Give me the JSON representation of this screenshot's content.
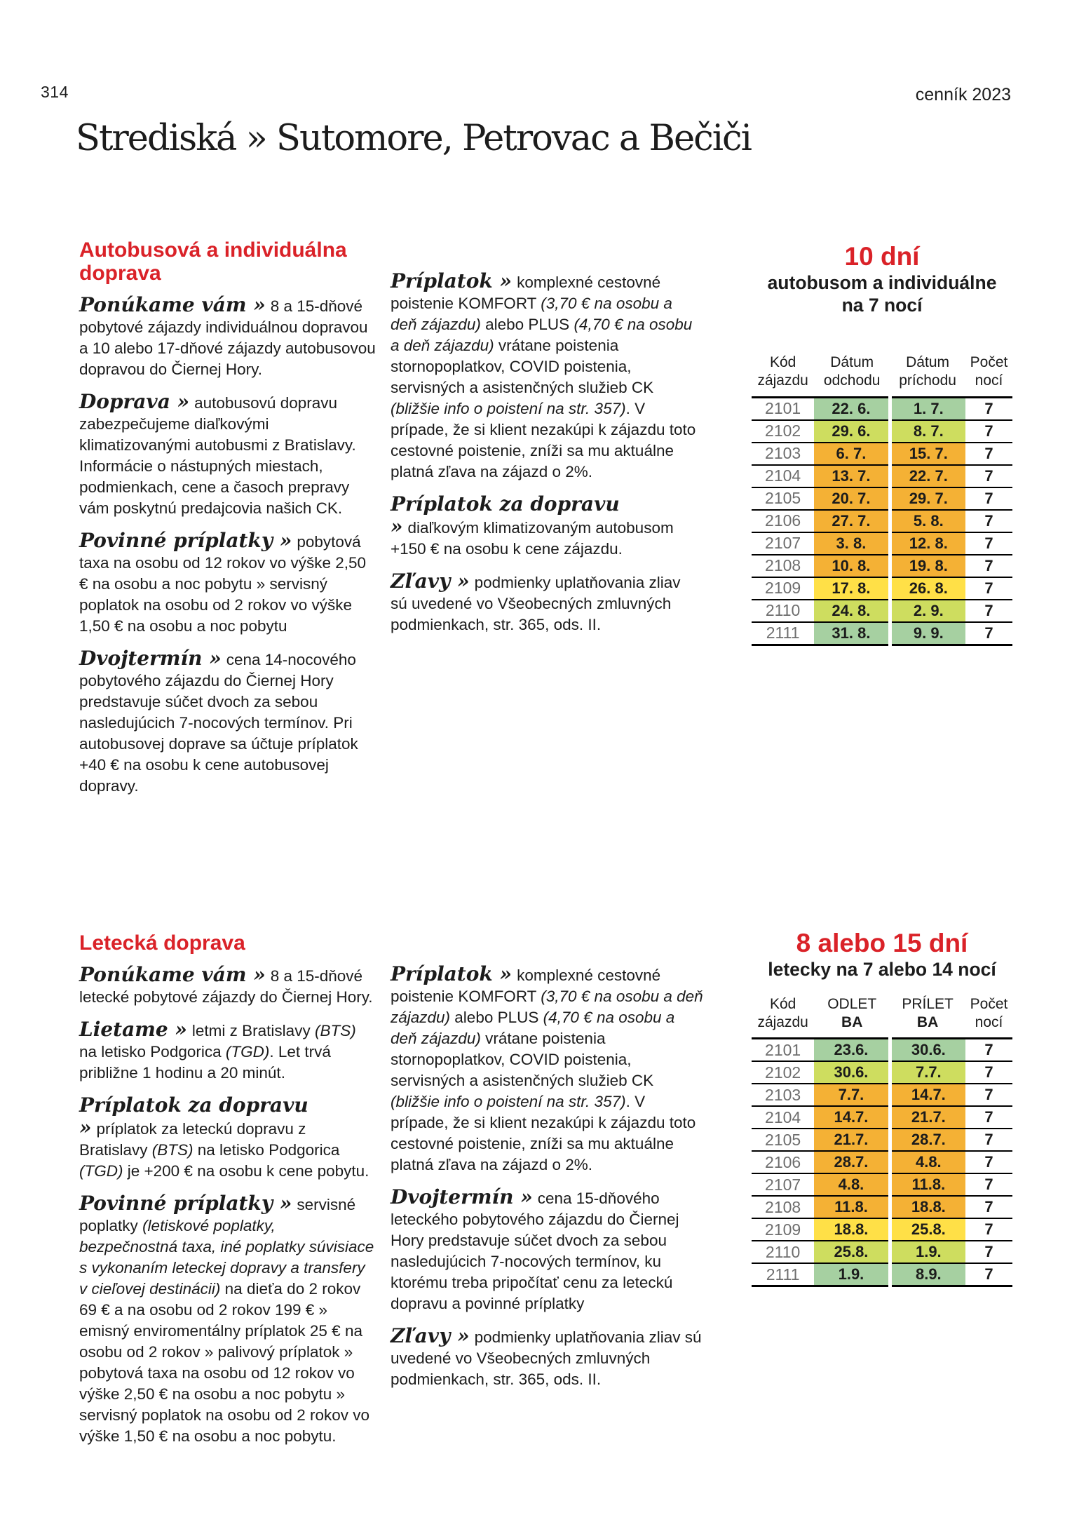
{
  "page": {
    "number": "314",
    "edition": "cenník 2023",
    "title": "Strediská » Sutomore, Petrovac a Bečiči"
  },
  "colors": {
    "accent_red": "#da2228",
    "row_green": "#a6d0a1",
    "row_lime": "#cedd5f",
    "row_orange": "#f4b135",
    "row_yellow": "#ffe047"
  },
  "section_bus": {
    "heading": "Autobusová a individuálna doprava",
    "col1": [
      {
        "lead": "Ponúkame vám »",
        "runs": [
          {
            "t": "8 a 15-dňové pobytové zájazdy individuálnou dopravou a 10 alebo 17-dňové zájazdy autobusovou dopravou do Čiernej Hory."
          }
        ]
      },
      {
        "lead": "Doprava »",
        "runs": [
          {
            "t": "autobusovú dopravu zabezpečujeme diaľkovými klimatizovanými autobusmi z Bratislavy. Informácie o nástupných miestach, podmienkach, cene a časoch prepravy vám poskytnú predajcovia našich CK."
          }
        ]
      },
      {
        "lead": "Povinné príplatky »",
        "runs": [
          {
            "t": "pobytová taxa na osobu od 12 rokov vo výške 2,50 € na osobu a noc pobytu » servisný poplatok na osobu od 2 rokov vo výške 1,50 € na osobu a noc pobytu"
          }
        ]
      },
      {
        "lead": "Dvojtermín »",
        "runs": [
          {
            "t": "cena 14-nocového pobytového zájazdu do Čiernej Hory predstavuje súčet dvoch za sebou nasledujúcich 7-nocových termínov. Pri autobusovej doprave sa účtuje príplatok +40 € na osobu k cene autobusovej dopravy."
          }
        ]
      }
    ],
    "col2": [
      {
        "lead": "Príplatok »",
        "runs": [
          {
            "t": "komplexné cestovné poistenie KOMFORT "
          },
          {
            "t": "(3,70 € na osobu a deň zájazdu)",
            "i": true
          },
          {
            "t": " alebo PLUS "
          },
          {
            "t": "(4,70 € na osobu a deň zájazdu)",
            "i": true
          },
          {
            "t": " vrátane poistenia stornopoplatkov, COVID poistenia, servisných a asistenčných služieb CK "
          },
          {
            "t": "(bližšie info o poistení na str. 357)",
            "i": true
          },
          {
            "t": ". V prípade, že si klient nezakúpi k zájazdu toto cestovné poistenie, zníži sa mu aktuálne platná zľava na zájazd o 2%."
          }
        ]
      },
      {
        "lead": "Príplatok za dopravu »",
        "runs": [
          {
            "t": "diaľkovým klimatizovaným autobusom +150 € na osobu k cene zájazdu."
          }
        ]
      },
      {
        "lead": "Zľavy »",
        "runs": [
          {
            "t": "podmienky uplatňovania zliav sú uvedené vo Všeobecných zmluvných podmienkach, str. 365, ods. II."
          }
        ]
      }
    ],
    "offer": {
      "duration": "10 dní",
      "subtitle_line1": "autobusom a individuálne",
      "subtitle_line2": "na 7 nocí"
    },
    "table": {
      "header": [
        {
          "l1": "Kód",
          "l2": "zájazdu"
        },
        {
          "l1": "Dátum",
          "l2": "odchodu"
        },
        {
          "l1": "Dátum",
          "l2": "príchodu"
        },
        {
          "l1": "Počet",
          "l2": "nocí"
        }
      ],
      "rows": [
        {
          "code": "2101",
          "dep": "22. 6.",
          "arr": "1. 7.",
          "nights": "7",
          "color": "green"
        },
        {
          "code": "2102",
          "dep": "29. 6.",
          "arr": "8. 7.",
          "nights": "7",
          "color": "lime"
        },
        {
          "code": "2103",
          "dep": "6. 7.",
          "arr": "15. 7.",
          "nights": "7",
          "color": "orange"
        },
        {
          "code": "2104",
          "dep": "13. 7.",
          "arr": "22. 7.",
          "nights": "7",
          "color": "orange"
        },
        {
          "code": "2105",
          "dep": "20. 7.",
          "arr": "29. 7.",
          "nights": "7",
          "color": "orange"
        },
        {
          "code": "2106",
          "dep": "27. 7.",
          "arr": "5. 8.",
          "nights": "7",
          "color": "orange"
        },
        {
          "code": "2107",
          "dep": "3. 8.",
          "arr": "12. 8.",
          "nights": "7",
          "color": "orange"
        },
        {
          "code": "2108",
          "dep": "10. 8.",
          "arr": "19. 8.",
          "nights": "7",
          "color": "orange"
        },
        {
          "code": "2109",
          "dep": "17. 8.",
          "arr": "26. 8.",
          "nights": "7",
          "color": "yellow"
        },
        {
          "code": "2110",
          "dep": "24. 8.",
          "arr": "2. 9.",
          "nights": "7",
          "color": "lime"
        },
        {
          "code": "2111",
          "dep": "31. 8.",
          "arr": "9. 9.",
          "nights": "7",
          "color": "green"
        }
      ]
    }
  },
  "section_air": {
    "heading": "Letecká doprava",
    "col1": [
      {
        "lead": "Ponúkame vám »",
        "runs": [
          {
            "t": "8 a 15-dňové letecké pobytové zájazdy do Čiernej Hory."
          }
        ]
      },
      {
        "lead": "Lietame »",
        "runs": [
          {
            "t": "letmi z Bratislavy "
          },
          {
            "t": "(BTS)",
            "i": true
          },
          {
            "t": " na letisko Podgorica "
          },
          {
            "t": "(TGD)",
            "i": true
          },
          {
            "t": ". Let trvá približne 1 hodinu a 20 minút."
          }
        ]
      },
      {
        "lead": "Príplatok za dopravu »",
        "runs": [
          {
            "t": "príplatok za leteckú dopravu z Bratislavy "
          },
          {
            "t": "(BTS)",
            "i": true
          },
          {
            "t": " na letisko Podgorica "
          },
          {
            "t": "(TGD)",
            "i": true
          },
          {
            "t": " je +200 € na osobu k cene pobytu."
          }
        ]
      },
      {
        "lead": "Povinné príplatky »",
        "runs": [
          {
            "t": "servisné poplatky "
          },
          {
            "t": "(letiskové poplatky, bezpečnostná taxa, iné poplatky súvisiace s vykonaním leteckej dopravy a transfery v cieľovej destinácii)",
            "i": true
          },
          {
            "t": " na dieťa do 2 rokov 69 € a na osobu od 2 rokov 199 € » emisný enviromentálny príplatok 25 € na osobu od 2 rokov » palivový príplatok » pobytová taxa na osobu od 12 rokov vo výške 2,50 € na osobu a noc pobytu » servisný poplatok na osobu od 2 rokov vo výške 1,50 € na osobu a noc pobytu."
          }
        ]
      }
    ],
    "col2": [
      {
        "lead": "Príplatok »",
        "runs": [
          {
            "t": "komplexné cestovné poistenie KOMFORT "
          },
          {
            "t": "(3,70 € na osobu a deň zájazdu)",
            "i": true
          },
          {
            "t": " alebo PLUS "
          },
          {
            "t": "(4,70 € na osobu a deň zájazdu)",
            "i": true
          },
          {
            "t": " vrátane poistenia stornopoplatkov, COVID poistenia, servisných a asistenčných služieb CK "
          },
          {
            "t": "(bližšie info o poistení na str. 357)",
            "i": true
          },
          {
            "t": ". V prípade, že si klient nezakúpi k zájazdu toto cestovné poistenie, zníži sa mu aktuálne platná zľava na zájazd o 2%."
          }
        ]
      },
      {
        "lead": "Dvojtermín »",
        "runs": [
          {
            "t": "cena 15-dňového leteckého pobytového zájazdu do Čiernej Hory predstavuje súčet dvoch za sebou nasledujúcich 7-nocových termínov, ku ktorému treba pripočítať cenu za leteckú dopravu a povinné príplatky"
          }
        ]
      },
      {
        "lead": "Zľavy »",
        "runs": [
          {
            "t": "podmienky uplatňovania zliav sú uvedené vo Všeobecných zmluvných podmienkach, str. 365, ods. II."
          }
        ]
      }
    ],
    "offer": {
      "duration": "8 alebo 15 dní",
      "subtitle_line1": "letecky na 7 alebo 14 nocí",
      "subtitle_line2": ""
    },
    "table": {
      "header": [
        {
          "l1": "Kód",
          "l2": "zájazdu"
        },
        {
          "l1": "ODLET",
          "l2": "BA",
          "b2": true
        },
        {
          "l1": "PRÍLET",
          "l2": "BA",
          "b2": true
        },
        {
          "l1": "Počet",
          "l2": "nocí"
        }
      ],
      "rows": [
        {
          "code": "2101",
          "dep": "23.6.",
          "arr": "30.6.",
          "nights": "7",
          "color": "green"
        },
        {
          "code": "2102",
          "dep": "30.6.",
          "arr": "7.7.",
          "nights": "7",
          "color": "lime"
        },
        {
          "code": "2103",
          "dep": "7.7.",
          "arr": "14.7.",
          "nights": "7",
          "color": "orange"
        },
        {
          "code": "2104",
          "dep": "14.7.",
          "arr": "21.7.",
          "nights": "7",
          "color": "orange"
        },
        {
          "code": "2105",
          "dep": "21.7.",
          "arr": "28.7.",
          "nights": "7",
          "color": "orange"
        },
        {
          "code": "2106",
          "dep": "28.7.",
          "arr": "4.8.",
          "nights": "7",
          "color": "orange"
        },
        {
          "code": "2107",
          "dep": "4.8.",
          "arr": "11.8.",
          "nights": "7",
          "color": "orange"
        },
        {
          "code": "2108",
          "dep": "11.8.",
          "arr": "18.8.",
          "nights": "7",
          "color": "orange"
        },
        {
          "code": "2109",
          "dep": "18.8.",
          "arr": "25.8.",
          "nights": "7",
          "color": "yellow"
        },
        {
          "code": "2110",
          "dep": "25.8.",
          "arr": "1.9.",
          "nights": "7",
          "color": "lime"
        },
        {
          "code": "2111",
          "dep": "1.9.",
          "arr": "8.9.",
          "nights": "7",
          "color": "green"
        }
      ]
    }
  }
}
